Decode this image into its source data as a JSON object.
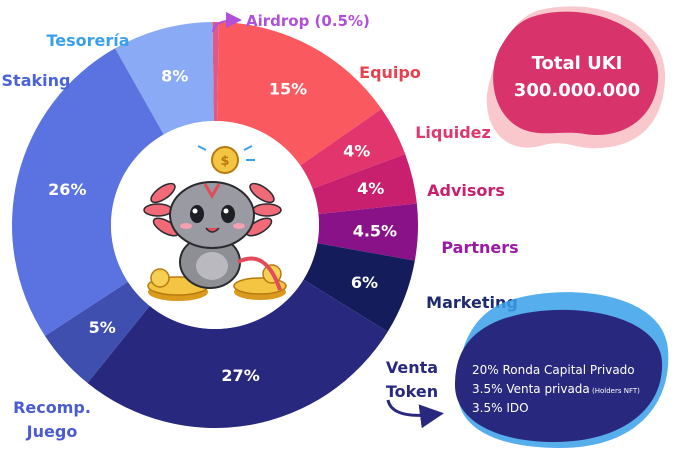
{
  "chart_data": {
    "type": "pie",
    "title": "",
    "slices": [
      {
        "label": "Airdrop (0.5%)",
        "value": 0.5,
        "value_label": "",
        "color": "#e0588a",
        "label_color": "#b04fd8"
      },
      {
        "label": "Equipo",
        "value": 15,
        "value_label": "15%",
        "color": "#fa5a5f",
        "label_color": "#e8404f"
      },
      {
        "label": "Liquidez",
        "value": 4,
        "value_label": "4%",
        "color": "#e2356e",
        "label_color": "#e0386c"
      },
      {
        "label": "Advisors",
        "value": 4,
        "value_label": "4%",
        "color": "#c8206e",
        "label_color": "#c8206e"
      },
      {
        "label": "Partners",
        "value": 4.5,
        "value_label": "4.5%",
        "color": "#8a1288",
        "label_color": "#9a1aa6"
      },
      {
        "label": "Marketing",
        "value": 6,
        "value_label": "6%",
        "color": "#141c5c",
        "label_color": "#1e2a6e"
      },
      {
        "label": "Venta Token",
        "value": 27,
        "value_label": "27%",
        "color": "#28287e",
        "label_color": "#28287e"
      },
      {
        "label": "Recomp. Juego",
        "value": 5,
        "value_label": "5%",
        "color": "#3f4fb0",
        "label_color": "#4a5cd0"
      },
      {
        "label": "Staking",
        "value": 26,
        "value_label": "26%",
        "color": "#5b73e0",
        "label_color": "#4a62dc"
      },
      {
        "label": "Tesorería",
        "value": 8,
        "value_label": "8%",
        "color": "#8aaaf5",
        "label_color": "#3aa0ea"
      }
    ]
  },
  "total": {
    "label": "Total UKI",
    "value": "300.000.000",
    "color": "#d8336a"
  },
  "venta_detail": {
    "color": "#28287e",
    "lines": [
      {
        "pct": "20%",
        "text": "Ronda Capital Privado",
        "note": ""
      },
      {
        "pct": "3.5%",
        "text": "Venta privada",
        "note": "(Holders NFT)"
      },
      {
        "pct": "3.5%",
        "text": "IDO",
        "note": ""
      }
    ]
  },
  "mascot": {
    "icon": "axolotl-mascot-with-coins",
    "coin_symbol": "$"
  }
}
